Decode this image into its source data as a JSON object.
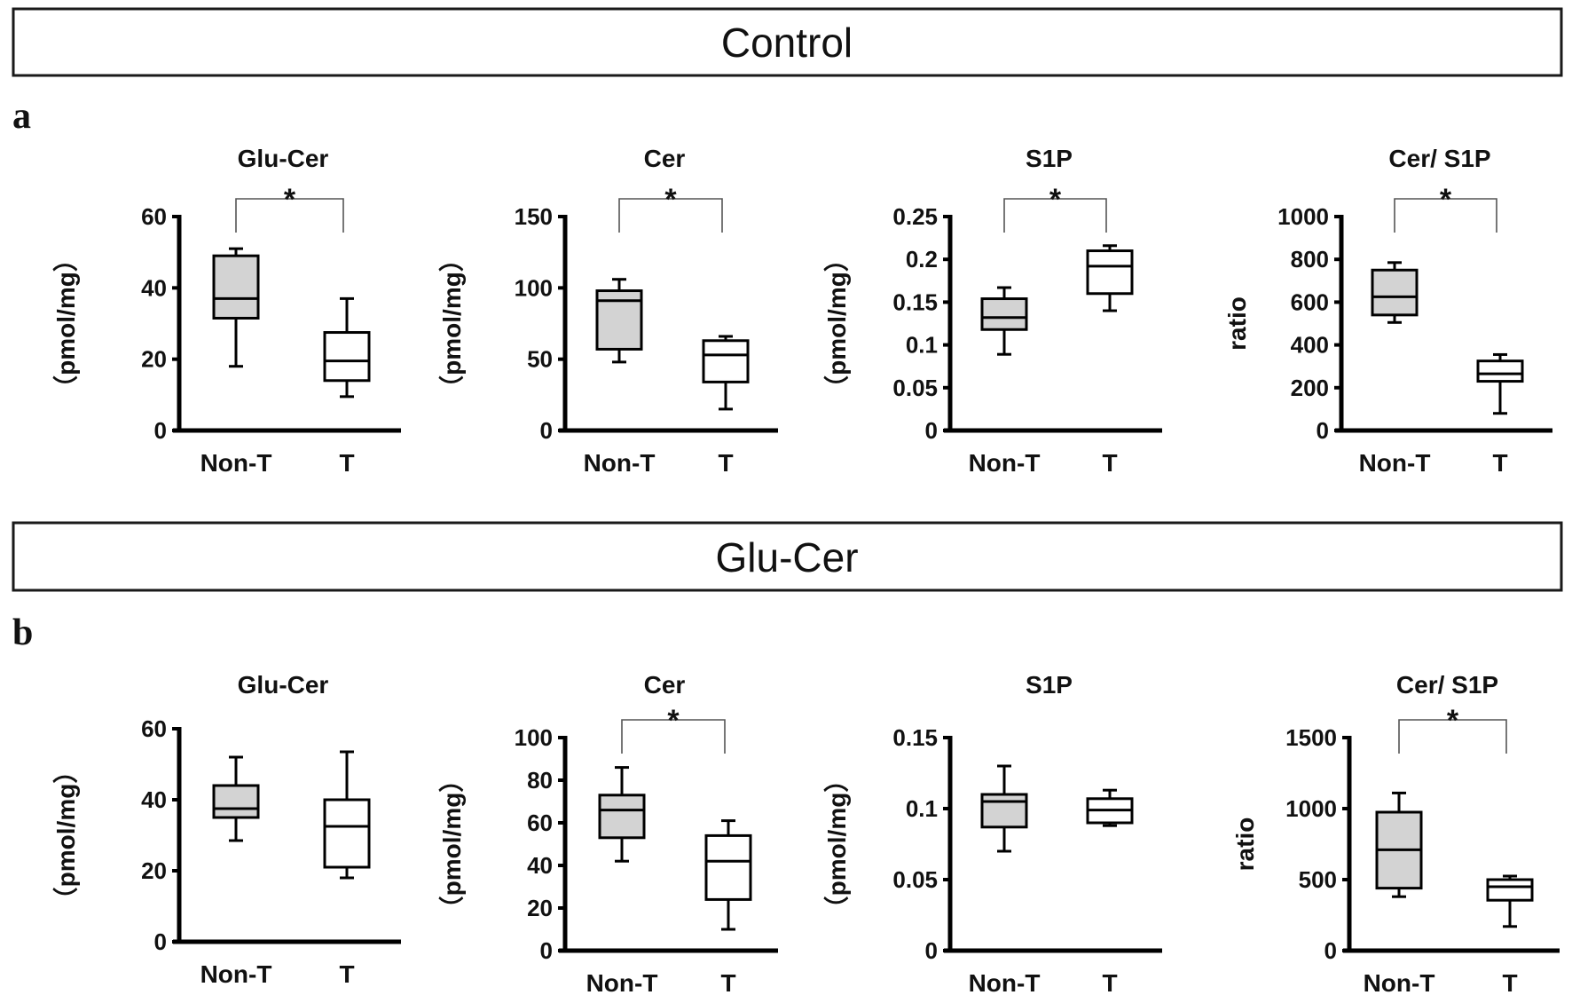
{
  "figure": {
    "sections": [
      {
        "header": "Control",
        "panel_letter": "a"
      },
      {
        "header": "Glu-Cer",
        "panel_letter": "b"
      }
    ]
  },
  "colors": {
    "non_tumor_fill": "#d3d3d3",
    "tumor_fill": "#ffffff",
    "line": "#000000"
  },
  "chart_data": [
    {
      "type": "box",
      "section": "Control",
      "panel": "a",
      "title": "Glu-Cer",
      "ylabel": "（pmol/mg）",
      "ylim": [
        0,
        60
      ],
      "yticks": [
        0,
        20,
        40,
        60
      ],
      "ytick_labels": [
        "0",
        "20",
        "40",
        "60"
      ],
      "categories": [
        "Non-T",
        "T"
      ],
      "boxes": [
        {
          "name": "Non-T",
          "min": 18,
          "q1": 31.5,
          "median": 37,
          "q3": 49,
          "max": 51
        },
        {
          "name": "T",
          "min": 9.5,
          "q1": 14,
          "median": 19.5,
          "q3": 27.5,
          "max": 37
        }
      ],
      "significance": "*"
    },
    {
      "type": "box",
      "section": "Control",
      "panel": "a",
      "title": "Cer",
      "ylabel": "（pmol/mg）",
      "ylim": [
        0,
        150
      ],
      "yticks": [
        0,
        50,
        100,
        150
      ],
      "ytick_labels": [
        "0",
        "50",
        "100",
        "150"
      ],
      "categories": [
        "Non-T",
        "T"
      ],
      "boxes": [
        {
          "name": "Non-T",
          "min": 48,
          "q1": 57,
          "median": 91,
          "q3": 98,
          "max": 106
        },
        {
          "name": "T",
          "min": 15,
          "q1": 34,
          "median": 53,
          "q3": 63,
          "max": 66
        }
      ],
      "significance": "*"
    },
    {
      "type": "box",
      "section": "Control",
      "panel": "a",
      "title": "S1P",
      "ylabel": "（pmol/mg）",
      "ylim": [
        0,
        0.25
      ],
      "yticks": [
        0,
        0.05,
        0.1,
        0.15,
        0.2,
        0.25
      ],
      "ytick_labels": [
        "0",
        "0.05",
        "0.1",
        "0.15",
        "0.2",
        "0.25"
      ],
      "categories": [
        "Non-T",
        "T"
      ],
      "boxes": [
        {
          "name": "Non-T",
          "min": 0.089,
          "q1": 0.118,
          "median": 0.132,
          "q3": 0.154,
          "max": 0.167
        },
        {
          "name": "T",
          "min": 0.14,
          "q1": 0.16,
          "median": 0.192,
          "q3": 0.21,
          "max": 0.216
        }
      ],
      "significance": "*"
    },
    {
      "type": "box",
      "section": "Control",
      "panel": "a",
      "title": "Cer/ S1P",
      "ylabel": "ratio",
      "ylim": [
        0,
        1000
      ],
      "yticks": [
        0,
        200,
        400,
        600,
        800,
        1000
      ],
      "ytick_labels": [
        "0",
        "200",
        "400",
        "600",
        "800",
        "1000"
      ],
      "categories": [
        "Non-T",
        "T"
      ],
      "boxes": [
        {
          "name": "Non-T",
          "min": 505,
          "q1": 540,
          "median": 625,
          "q3": 750,
          "max": 785
        },
        {
          "name": "T",
          "min": 80,
          "q1": 230,
          "median": 265,
          "q3": 325,
          "max": 355
        }
      ],
      "significance": "*"
    },
    {
      "type": "box",
      "section": "Glu-Cer",
      "panel": "b",
      "title": "Glu-Cer",
      "ylabel": "（pmol/mg）",
      "ylim": [
        0,
        60
      ],
      "yticks": [
        0,
        20,
        40,
        60
      ],
      "ytick_labels": [
        "0",
        "20",
        "40",
        "60"
      ],
      "categories": [
        "Non-T",
        "T"
      ],
      "boxes": [
        {
          "name": "Non-T",
          "min": 28.5,
          "q1": 35,
          "median": 37.5,
          "q3": 44,
          "max": 52
        },
        {
          "name": "T",
          "min": 18,
          "q1": 21,
          "median": 32.5,
          "q3": 40,
          "max": 53.5
        }
      ],
      "significance": ""
    },
    {
      "type": "box",
      "section": "Glu-Cer",
      "panel": "b",
      "title": "Cer",
      "ylabel": "（pmol/mg）",
      "ylim": [
        0,
        100
      ],
      "yticks": [
        0,
        20,
        40,
        60,
        80,
        100
      ],
      "ytick_labels": [
        "0",
        "20",
        "40",
        "60",
        "80",
        "100"
      ],
      "categories": [
        "Non-T",
        "T"
      ],
      "boxes": [
        {
          "name": "Non-T",
          "min": 42,
          "q1": 53,
          "median": 66,
          "q3": 73,
          "max": 86
        },
        {
          "name": "T",
          "min": 10,
          "q1": 24,
          "median": 42,
          "q3": 54,
          "max": 61
        }
      ],
      "significance": "*"
    },
    {
      "type": "box",
      "section": "Glu-Cer",
      "panel": "b",
      "title": "S1P",
      "ylabel": "（pmol/mg）",
      "ylim": [
        0,
        0.15
      ],
      "yticks": [
        0,
        0.05,
        0.1,
        0.15
      ],
      "ytick_labels": [
        "0",
        "0.05",
        "0.1",
        "0.15"
      ],
      "categories": [
        "Non-T",
        "T"
      ],
      "boxes": [
        {
          "name": "Non-T",
          "min": 0.07,
          "q1": 0.087,
          "median": 0.105,
          "q3": 0.11,
          "max": 0.13
        },
        {
          "name": "T",
          "min": 0.088,
          "q1": 0.09,
          "median": 0.099,
          "q3": 0.107,
          "max": 0.113
        }
      ],
      "significance": ""
    },
    {
      "type": "box",
      "section": "Glu-Cer",
      "panel": "b",
      "title": "Cer/ S1P",
      "ylabel": "ratio",
      "ylim": [
        0,
        1500
      ],
      "yticks": [
        0,
        500,
        1000,
        1500
      ],
      "ytick_labels": [
        "0",
        "500",
        "1000",
        "1500"
      ],
      "categories": [
        "Non-T",
        "T"
      ],
      "boxes": [
        {
          "name": "Non-T",
          "min": 380,
          "q1": 440,
          "median": 710,
          "q3": 975,
          "max": 1110
        },
        {
          "name": "T",
          "min": 170,
          "q1": 355,
          "median": 450,
          "q3": 500,
          "max": 525
        }
      ],
      "significance": "*"
    }
  ]
}
